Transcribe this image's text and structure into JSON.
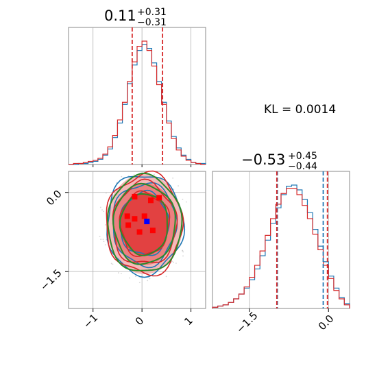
{
  "chart_data": {
    "type": "corner",
    "annotation": "KL = 0.0014",
    "colors": {
      "series_a": "#1f77b4",
      "series_b": "#d62728",
      "contour_green": "#2a8a2a",
      "point_a": "#0000ff",
      "point_b": "#ff0000",
      "grid": "#b0b0b0"
    },
    "params": [
      {
        "title_main": "0.11",
        "title_upper": "+0.31",
        "title_lower": "−0.31",
        "median": 0.11,
        "q_lo": -0.2,
        "q_hi": 0.42,
        "range": [
          -1.5,
          1.3
        ],
        "ticks": [
          -1,
          0,
          1
        ],
        "tick_labels": [
          "−1",
          "0",
          "1"
        ]
      },
      {
        "title_main": "−0.53",
        "title_upper": "+0.45",
        "title_lower": "−0.44",
        "median": -0.53,
        "q_lo_a": -0.97,
        "q_hi_a": -0.1,
        "q_lo_b": -0.98,
        "q_hi_b": -0.02,
        "range": [
          -2.2,
          0.4
        ],
        "ticks": [
          -1.5,
          0.0
        ],
        "tick_labels": [
          "−1.5",
          "0.0"
        ]
      }
    ],
    "hist1": {
      "bin_centers": [
        -1.45,
        -1.35,
        -1.25,
        -1.15,
        -1.05,
        -0.95,
        -0.85,
        -0.75,
        -0.65,
        -0.55,
        -0.45,
        -0.35,
        -0.25,
        -0.15,
        -0.05,
        0.05,
        0.15,
        0.25,
        0.35,
        0.45,
        0.55,
        0.65,
        0.75,
        0.85,
        0.95,
        1.05,
        1.15,
        1.25
      ],
      "series_a": [
        0,
        0,
        1,
        1,
        2,
        3,
        5,
        9,
        15,
        26,
        40,
        58,
        78,
        96,
        110,
        116,
        112,
        98,
        80,
        60,
        42,
        27,
        16,
        9,
        5,
        2,
        1,
        1
      ],
      "series_b": [
        0,
        1,
        1,
        2,
        3,
        4,
        6,
        10,
        17,
        28,
        43,
        60,
        80,
        99,
        114,
        119,
        110,
        95,
        77,
        58,
        40,
        25,
        14,
        8,
        4,
        2,
        1,
        0
      ]
    },
    "hist2": {
      "bin_centers": [
        -2.15,
        -2.05,
        -1.95,
        -1.85,
        -1.75,
        -1.65,
        -1.55,
        -1.45,
        -1.35,
        -1.25,
        -1.15,
        -1.05,
        -0.95,
        -0.85,
        -0.75,
        -0.65,
        -0.55,
        -0.45,
        -0.35,
        -0.25,
        -0.15,
        -0.05,
        0.05,
        0.15,
        0.25,
        0.35
      ],
      "series_a": [
        1,
        2,
        3,
        5,
        8,
        12,
        17,
        24,
        33,
        44,
        57,
        71,
        84,
        95,
        102,
        103,
        99,
        91,
        80,
        66,
        52,
        39,
        27,
        17,
        9,
        4
      ],
      "series_b": [
        1,
        2,
        3,
        5,
        8,
        12,
        18,
        26,
        36,
        48,
        61,
        75,
        87,
        96,
        100,
        100,
        95,
        86,
        75,
        62,
        49,
        36,
        25,
        15,
        8,
        3
      ]
    },
    "scatter2d": {
      "center": [
        0.05,
        -0.6
      ],
      "contour_rx": [
        0.78,
        0.65,
        0.5
      ],
      "contour_ry": [
        0.95,
        0.78,
        0.6
      ],
      "point_a": [
        0.1,
        -0.55
      ],
      "red_markers": [
        [
          -0.15,
          -0.08
        ],
        [
          0.18,
          -0.15
        ],
        [
          0.35,
          -0.1
        ],
        [
          -0.3,
          -0.45
        ],
        [
          -0.15,
          -0.5
        ],
        [
          0.05,
          -0.45
        ],
        [
          -0.05,
          -0.75
        ],
        [
          0.22,
          -0.72
        ],
        [
          -0.28,
          -0.62
        ]
      ]
    }
  }
}
